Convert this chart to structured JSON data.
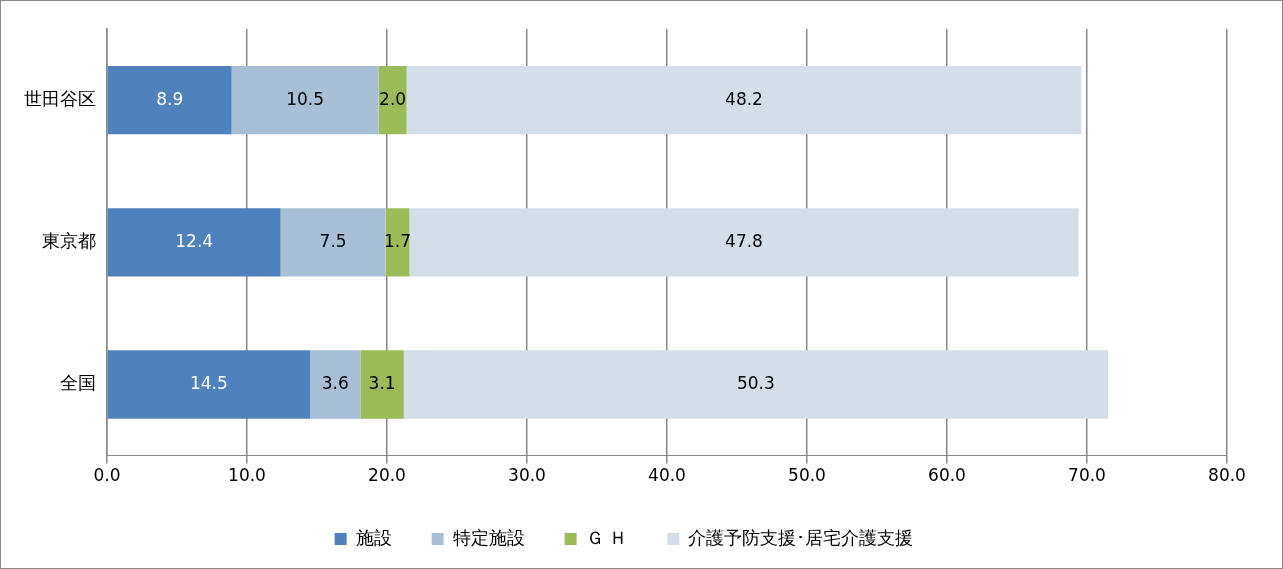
{
  "chart_data": {
    "type": "bar",
    "orientation": "horizontal",
    "stacked": true,
    "categories": [
      "世田谷区",
      "東京都",
      "全国"
    ],
    "series": [
      {
        "name": "施設",
        "color": "#4f81bd",
        "values": [
          8.9,
          12.4,
          14.5
        ],
        "value_labels": [
          "8.9",
          "12.4",
          "14.5"
        ]
      },
      {
        "name": "特定施設",
        "color": "#a9bfd6",
        "values": [
          10.5,
          7.5,
          3.6
        ],
        "value_labels": [
          "10.5",
          "7.5",
          "3.6"
        ]
      },
      {
        "name": "Ｇ Ｈ",
        "color": "#9bbb59",
        "values": [
          2.0,
          1.7,
          3.1
        ],
        "value_labels": [
          "2.0",
          "1.7",
          "3.1"
        ]
      },
      {
        "name": "介護予防支援･居宅介護支援",
        "color": "#d3dee9",
        "values": [
          48.2,
          47.8,
          50.3
        ],
        "value_labels": [
          "48.2",
          "47.8",
          "50.3"
        ]
      }
    ],
    "xlim": [
      0,
      80
    ],
    "xticks": [
      {
        "value": 0,
        "label": "0.0"
      },
      {
        "value": 10,
        "label": "10.0"
      },
      {
        "value": 20,
        "label": "20.0"
      },
      {
        "value": 30,
        "label": "30.0"
      },
      {
        "value": 40,
        "label": "40.0"
      },
      {
        "value": 50,
        "label": "50.0"
      },
      {
        "value": 60,
        "label": "60.0"
      },
      {
        "value": 70,
        "label": "70.0"
      },
      {
        "value": 80,
        "label": "80.0"
      }
    ],
    "grid": "x",
    "legend": "bottom"
  }
}
